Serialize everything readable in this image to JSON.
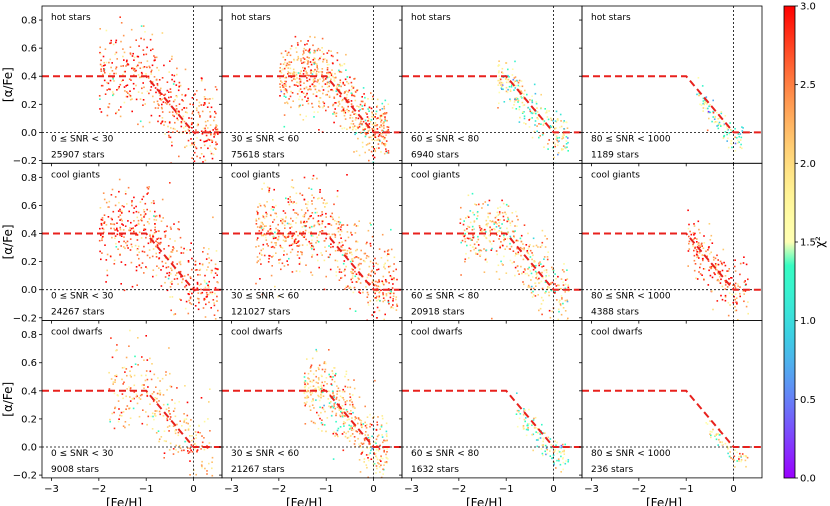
{
  "chart_data": {
    "type": "scatter",
    "description_axes": {
      "xlabel": "[Fe/H]",
      "ylabel": "[α/Fe]",
      "xlim": [
        -3.2,
        0.6
      ],
      "ylim": [
        -0.22,
        0.9
      ],
      "xticks": [
        -3,
        -2,
        -1,
        0
      ],
      "xtick_labels": [
        "−3",
        "−2",
        "−1",
        "0"
      ],
      "yticks": [
        -0.2,
        0.0,
        0.2,
        0.4,
        0.6,
        0.8
      ],
      "ytick_labels": [
        "−0.2",
        "0.0",
        "0.2",
        "0.4",
        "0.6",
        "0.8"
      ]
    },
    "reference_lines": {
      "dashed_red_polyline": [
        [
          -3.2,
          0.4
        ],
        [
          -1.0,
          0.4
        ],
        [
          0.0,
          0.0
        ],
        [
          0.6,
          0.0
        ]
      ],
      "dotted_black_vertical_x": 0.0,
      "dotted_black_horizontal_y": 0.0
    },
    "colorbar": {
      "label": "χ²",
      "range": [
        0.0,
        3.0
      ],
      "ticks": [
        0.0,
        0.5,
        1.0,
        1.5,
        2.0,
        2.5,
        3.0
      ],
      "tick_labels": [
        "0.0",
        "0.5",
        "1.0",
        "1.5",
        "2.0",
        "2.5",
        "3.0"
      ],
      "colormap": "rainbow"
    },
    "panels": [
      {
        "row": "hot stars",
        "snr": "0 ≤ SNR < 30",
        "count": "25907 stars",
        "n": 25907
      },
      {
        "row": "hot stars",
        "snr": "30 ≤ SNR < 60",
        "count": "75618 stars",
        "n": 75618
      },
      {
        "row": "hot stars",
        "snr": "60 ≤ SNR < 80",
        "count": "6940 stars",
        "n": 6940
      },
      {
        "row": "hot stars",
        "snr": "80 ≤ SNR < 1000",
        "count": "1189 stars",
        "n": 1189
      },
      {
        "row": "cool giants",
        "snr": "0 ≤ SNR < 30",
        "count": "24267 stars",
        "n": 24267
      },
      {
        "row": "cool giants",
        "snr": "30 ≤ SNR < 60",
        "count": "121027 stars",
        "n": 121027
      },
      {
        "row": "cool giants",
        "snr": "60 ≤ SNR < 80",
        "count": "20918 stars",
        "n": 20918
      },
      {
        "row": "cool giants",
        "snr": "80 ≤ SNR < 1000",
        "count": "4388 stars",
        "n": 4388
      },
      {
        "row": "cool dwarfs",
        "snr": "0 ≤ SNR < 30",
        "count": "9008 stars",
        "n": 9008
      },
      {
        "row": "cool dwarfs",
        "snr": "30 ≤ SNR < 60",
        "count": "21267 stars",
        "n": 21267
      },
      {
        "row": "cool dwarfs",
        "snr": "60 ≤ SNR < 80",
        "count": "1632 stars",
        "n": 1632
      },
      {
        "row": "cool dwarfs",
        "snr": "80 ≤ SNR < 1000",
        "count": "236 stars",
        "n": 236
      }
    ],
    "point_clouds": [
      {
        "feh_range": [
          -2.0,
          0.5
        ],
        "alpha_center": 0.2,
        "spread": 0.3,
        "chi2_mean": 2.6
      },
      {
        "feh_range": [
          -2.0,
          0.3
        ],
        "alpha_center": 0.15,
        "spread": 0.25,
        "chi2_mean": 2.3
      },
      {
        "feh_range": [
          -1.2,
          0.3
        ],
        "alpha_center": 0.1,
        "spread": 0.15,
        "chi2_mean": 1.7
      },
      {
        "feh_range": [
          -0.8,
          0.2
        ],
        "alpha_center": 0.08,
        "spread": 0.1,
        "chi2_mean": 1.5
      },
      {
        "feh_range": [
          -2.0,
          0.5
        ],
        "alpha_center": 0.2,
        "spread": 0.3,
        "chi2_mean": 2.6
      },
      {
        "feh_range": [
          -2.5,
          0.5
        ],
        "alpha_center": 0.2,
        "spread": 0.3,
        "chi2_mean": 2.4
      },
      {
        "feh_range": [
          -2.0,
          0.3
        ],
        "alpha_center": 0.15,
        "spread": 0.25,
        "chi2_mean": 2.1
      },
      {
        "feh_range": [
          -1.0,
          0.3
        ],
        "alpha_center": 0.12,
        "spread": 0.2,
        "chi2_mean": 2.6
      },
      {
        "feh_range": [
          -1.8,
          0.4
        ],
        "alpha_center": 0.2,
        "spread": 0.3,
        "chi2_mean": 2.2
      },
      {
        "feh_range": [
          -1.5,
          0.3
        ],
        "alpha_center": 0.15,
        "spread": 0.25,
        "chi2_mean": 2.1
      },
      {
        "feh_range": [
          -0.8,
          0.3
        ],
        "alpha_center": 0.05,
        "spread": 0.1,
        "chi2_mean": 1.6
      },
      {
        "feh_range": [
          -0.6,
          0.3
        ],
        "alpha_center": 0.02,
        "spread": 0.06,
        "chi2_mean": 1.9
      }
    ]
  }
}
